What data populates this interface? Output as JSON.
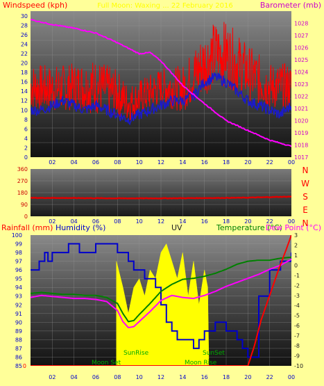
{
  "colors": {
    "background": "#ffff99",
    "wind_speed": "#ff0000",
    "wind_avg": "#1a1acc",
    "barometer": "#ff00ff",
    "wind_direction": "#dd0000",
    "rain": "#ff0000",
    "humidity": "#0000cc",
    "uv": "#ffff00",
    "temperature": "#008000",
    "dew_point": "#ff00ff",
    "sun_label": "#008000",
    "moon_label": "#008000"
  },
  "chart_data": [
    {
      "type": "line",
      "left_label": "Windspeed (kph)",
      "header": "Full Moon: Waxing ... 22 February 2016",
      "right_label": "Barometer (mb)",
      "y_left_range": [
        0,
        31
      ],
      "y_left_ticks": [
        "0",
        "2",
        "4",
        "6",
        "8",
        "10",
        "12",
        "14",
        "16",
        "18",
        "20",
        "22",
        "24",
        "26",
        "28",
        "30"
      ],
      "y_right_range": [
        1017,
        1029
      ],
      "y_right_ticks": [
        "1017",
        "1018",
        "1019",
        "1020",
        "1021",
        "1022",
        "1023",
        "1024",
        "1025",
        "1026",
        "1027",
        "1028"
      ],
      "x_range": [
        0,
        24
      ],
      "x_ticks": [
        "02",
        "04",
        "06",
        "08",
        "10",
        "12",
        "14",
        "16",
        "18",
        "20",
        "22",
        "00"
      ],
      "grid": true,
      "series": [
        {
          "key": "gust",
          "axis": "left",
          "style": "noisy",
          "x": [
            0,
            2,
            4,
            6,
            8,
            9,
            10,
            12,
            14,
            16,
            17,
            18,
            20,
            22,
            24
          ],
          "y": [
            15,
            14.5,
            15,
            15,
            13.5,
            11.5,
            12.5,
            15,
            14.5,
            20,
            22,
            22,
            18,
            15,
            15
          ],
          "spread": [
            5,
            5,
            5,
            6,
            5,
            4,
            4,
            4,
            5,
            7,
            7,
            7,
            6,
            5,
            5
          ]
        },
        {
          "key": "average",
          "axis": "left",
          "style": "jagged",
          "x": [
            0,
            1,
            2,
            3,
            4,
            5,
            6,
            7,
            8,
            9,
            10,
            11,
            12,
            13,
            14,
            15,
            16,
            17,
            18,
            19,
            20,
            21,
            22,
            23,
            24
          ],
          "y": [
            10,
            10,
            11,
            12,
            11,
            10,
            11,
            10,
            9,
            8,
            9,
            10,
            11,
            12,
            12,
            13,
            16,
            17,
            16,
            14,
            12,
            11,
            10,
            9,
            11
          ],
          "spread": 1.2
        },
        {
          "key": "barometer",
          "axis": "right",
          "style": "smooth",
          "x": [
            0,
            2,
            4,
            6,
            8,
            10,
            11,
            12,
            13,
            14,
            16,
            18,
            20,
            22,
            24
          ],
          "y": [
            1028.3,
            1027.9,
            1027.6,
            1027.2,
            1026.4,
            1025.5,
            1025.6,
            1024.9,
            1023.9,
            1022.9,
            1021.4,
            1020.0,
            1019.2,
            1018.4,
            1017.9
          ]
        }
      ]
    },
    {
      "type": "line",
      "y_ticks": [
        "0",
        "90",
        "180",
        "270",
        "360"
      ],
      "y_range": [
        0,
        360
      ],
      "x_range": [
        0,
        24
      ],
      "x_ticks": [
        "02",
        "04",
        "06",
        "08",
        "10",
        "12",
        "14",
        "16",
        "18",
        "20",
        "22",
        "00"
      ],
      "compass_labels": [
        "N",
        "W",
        "S",
        "E",
        "N"
      ],
      "series": [
        {
          "key": "direction",
          "style": "smooth",
          "x": [
            0,
            2,
            4,
            6,
            8,
            10,
            12,
            14,
            16,
            18,
            20,
            22,
            24
          ],
          "y": [
            140,
            140,
            139,
            138,
            137,
            137,
            137,
            138,
            139,
            140,
            142,
            146,
            150
          ]
        }
      ]
    },
    {
      "type": "line",
      "labels": {
        "rainfall": "Rainfall (mm)",
        "humidity": "Humidity (%)",
        "uv": "UV",
        "temperature": "Temperature (°C)",
        "dew_point": "Dew Point (°C)"
      },
      "y_left_range": [
        85,
        100
      ],
      "y_left_ticks": [
        "85",
        "86",
        "87",
        "88",
        "89",
        "90",
        "91",
        "92",
        "93",
        "94",
        "95",
        "96",
        "97",
        "98",
        "99",
        "100"
      ],
      "y_right_range": [
        -10,
        3
      ],
      "y_right_ticks": [
        "-10",
        "-9",
        "-8",
        "-7",
        "-6",
        "-5",
        "-4",
        "-3",
        "-2",
        "-1",
        "0",
        "1",
        "2",
        "3"
      ],
      "x_range": [
        0,
        24
      ],
      "x_ticks": [
        "02",
        "04",
        "06",
        "08",
        "10",
        "12",
        "14",
        "16",
        "18",
        "20",
        "22",
        "00"
      ],
      "annotations": [
        "SunRise",
        "SunSet",
        "Moon Set",
        "Moon Rise"
      ],
      "series": [
        {
          "key": "uv",
          "axis": "left",
          "style": "fill",
          "x": [
            7.9,
            8.5,
            9,
            9.5,
            10,
            10.5,
            11,
            11.5,
            12,
            12.5,
            13,
            13.5,
            14,
            14.5,
            15,
            15.5,
            16,
            16.3,
            16.4
          ],
          "y": [
            97,
            94,
            91,
            94,
            95,
            93,
            96,
            95,
            98,
            99,
            97,
            95,
            98,
            93,
            97,
            92,
            96,
            94,
            86
          ]
        },
        {
          "key": "humidity",
          "axis": "left",
          "style": "step",
          "x": [
            0,
            0.8,
            1.3,
            1.6,
            2,
            3.5,
            4.5,
            6,
            7.5,
            8,
            9,
            9.5,
            10.5,
            11.5,
            12,
            12.5,
            13,
            13.5,
            14.5,
            15,
            15.5,
            16,
            16.5,
            17,
            18,
            19,
            19.5,
            20,
            21,
            22,
            23,
            24
          ],
          "y": [
            96,
            97,
            98,
            97,
            98,
            99,
            98,
            99,
            99,
            98,
            97,
            96,
            95,
            94,
            92,
            90,
            89,
            88,
            88,
            87,
            88,
            89,
            89,
            90,
            89,
            88,
            87,
            86,
            93,
            96,
            97,
            98
          ]
        },
        {
          "key": "temperature",
          "axis": "right",
          "style": "smooth",
          "x": [
            0,
            1,
            2,
            3,
            4,
            5,
            6,
            7,
            8,
            8.5,
            9,
            9.5,
            10,
            11,
            12,
            13,
            14,
            15,
            16,
            17,
            18,
            19,
            20,
            21,
            22,
            23,
            24
          ],
          "y": [
            -2.8,
            -2.7,
            -2.8,
            -2.9,
            -2.9,
            -3.0,
            -3.0,
            -3.2,
            -3.8,
            -4.8,
            -5.6,
            -5.5,
            -4.9,
            -3.8,
            -2.6,
            -1.9,
            -1.4,
            -1.3,
            -1.1,
            -0.8,
            -0.4,
            0.1,
            0.4,
            0.5,
            0.5,
            0.7,
            0.8
          ]
        },
        {
          "key": "dew_point",
          "axis": "right",
          "style": "smooth",
          "x": [
            0,
            1,
            2,
            3,
            4,
            5,
            6,
            7,
            8,
            8.5,
            9,
            9.5,
            10,
            11,
            12,
            13,
            14,
            15,
            16,
            17,
            18,
            19,
            20,
            21,
            22,
            23,
            24
          ],
          "y": [
            -3.2,
            -3.0,
            -3.1,
            -3.2,
            -3.3,
            -3.3,
            -3.4,
            -3.6,
            -4.5,
            -5.6,
            -6.2,
            -6.1,
            -5.6,
            -4.6,
            -3.5,
            -3.0,
            -3.2,
            -3.3,
            -3.0,
            -2.6,
            -2.1,
            -1.7,
            -1.3,
            -0.9,
            -0.4,
            0.0,
            0.6
          ]
        },
        {
          "key": "rain",
          "axis": "right",
          "style": "smooth",
          "x": [
            0,
            20,
            20.6,
            21.2,
            22,
            22.8,
            23.5,
            24
          ],
          "y": [
            -10,
            -10,
            -8,
            -5.5,
            -3,
            -0.5,
            1.5,
            3
          ]
        }
      ]
    }
  ]
}
